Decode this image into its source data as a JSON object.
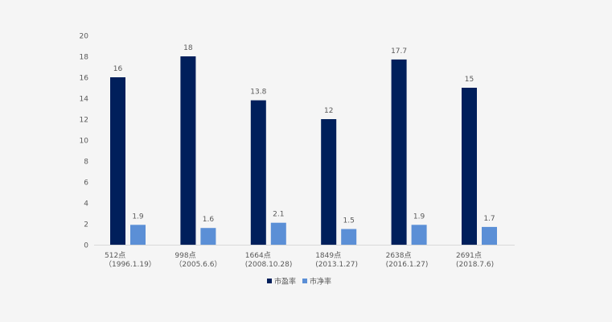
{
  "chart_data": {
    "type": "bar",
    "title": "",
    "xlabel": "",
    "ylabel": "",
    "ylim": [
      0,
      20
    ],
    "y_ticks": [
      0,
      2,
      4,
      6,
      8,
      10,
      12,
      14,
      16,
      18,
      20
    ],
    "categories": [
      [
        "512点",
        "（1996.1.19）"
      ],
      [
        "998点",
        "（2005.6.6）"
      ],
      [
        "1664点",
        "(2008.10.28)"
      ],
      [
        "1849点",
        "(2013.1.27)"
      ],
      [
        "2638点",
        "(2016.1.27)"
      ],
      [
        "2691点",
        "(2018.7.6)"
      ]
    ],
    "series": [
      {
        "name": "市盈率",
        "color": "#001f5b",
        "values": [
          16,
          18,
          13.8,
          12,
          17.7,
          15
        ]
      },
      {
        "name": "市净率",
        "color": "#5b8fd6",
        "values": [
          1.9,
          1.6,
          2.1,
          1.5,
          1.9,
          1.7
        ]
      }
    ],
    "grid": false,
    "legend": "bottom-center",
    "axis_color": "#d9d9d9",
    "label_color": "#595959"
  }
}
